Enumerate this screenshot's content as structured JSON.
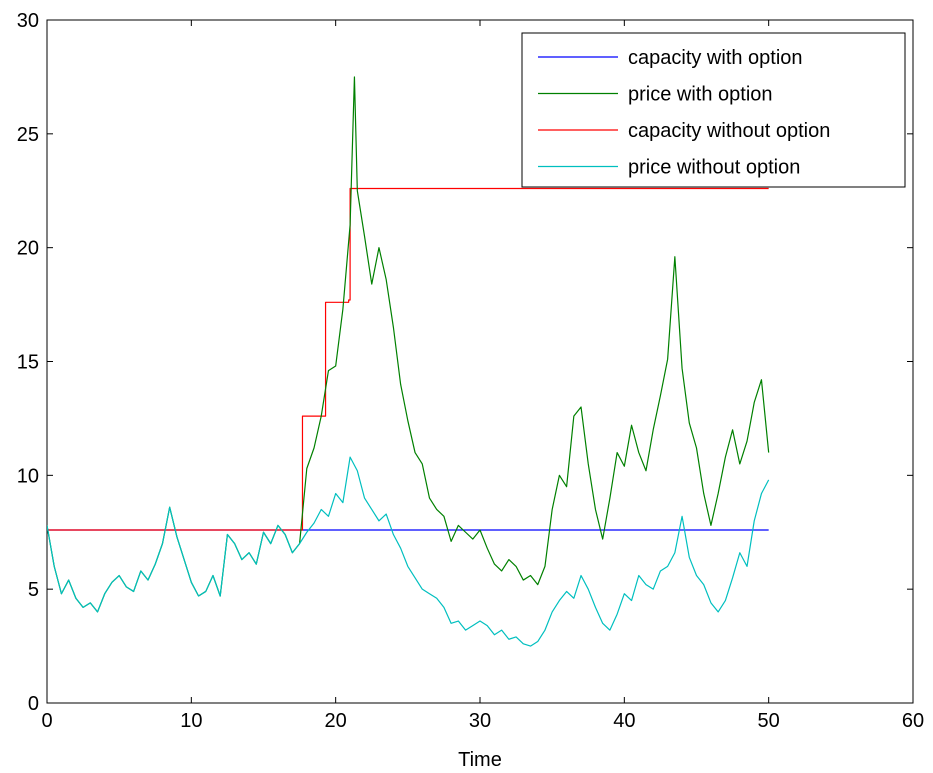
{
  "chart_data": {
    "type": "line",
    "title": "",
    "xlabel": "Time",
    "ylabel": "",
    "xlim": [
      0,
      60
    ],
    "ylim": [
      0,
      30
    ],
    "xticks": [
      "0",
      "10",
      "20",
      "30",
      "40",
      "50",
      "60"
    ],
    "yticks": [
      "0",
      "5",
      "10",
      "15",
      "20",
      "25",
      "30"
    ],
    "grid": false,
    "legend_position": "top-right",
    "series": [
      {
        "name": "capacity with option",
        "color": "#0000ff",
        "x": [
          0,
          50
        ],
        "y": [
          7.6,
          7.6
        ],
        "step": true
      },
      {
        "name": "price with option",
        "color": "#008000",
        "x": [
          0,
          0.5,
          1.0,
          1.5,
          2.0,
          2.5,
          3.0,
          3.5,
          4.0,
          4.5,
          5.0,
          5.5,
          6.0,
          6.5,
          7.0,
          7.5,
          8.0,
          8.5,
          9.0,
          9.5,
          10.0,
          10.5,
          11.0,
          11.5,
          12.0,
          12.5,
          13.0,
          13.5,
          14.0,
          14.5,
          15.0,
          15.5,
          16.0,
          16.5,
          17.0,
          17.5,
          18.0,
          18.5,
          19.0,
          19.5,
          20.0,
          20.5,
          21.0,
          21.3,
          21.5,
          22.0,
          22.5,
          23.0,
          23.5,
          24.0,
          24.5,
          25.0,
          25.5,
          26.0,
          26.5,
          27.0,
          27.5,
          28.0,
          28.5,
          29.0,
          29.5,
          30.0,
          30.5,
          31.0,
          31.5,
          32.0,
          32.5,
          33.0,
          33.5,
          34.0,
          34.5,
          35.0,
          35.5,
          36.0,
          36.5,
          37.0,
          37.5,
          38.0,
          38.5,
          39.0,
          39.5,
          40.0,
          40.5,
          41.0,
          41.5,
          42.0,
          42.5,
          43.0,
          43.5,
          44.0,
          44.5,
          45.0,
          45.5,
          46.0,
          46.5,
          47.0,
          47.5,
          48.0,
          48.5,
          49.0,
          49.5,
          50.0
        ],
        "y": [
          7.8,
          6.0,
          4.8,
          5.4,
          4.6,
          4.2,
          4.4,
          4.0,
          4.8,
          5.3,
          5.6,
          5.1,
          4.9,
          5.8,
          5.4,
          6.1,
          7.0,
          8.6,
          7.3,
          6.3,
          5.3,
          4.7,
          4.9,
          5.6,
          4.7,
          7.4,
          7.0,
          6.3,
          6.6,
          6.1,
          7.5,
          7.0,
          7.8,
          7.4,
          6.6,
          7.0,
          10.3,
          11.2,
          12.6,
          14.6,
          14.8,
          17.3,
          21.0,
          27.5,
          22.5,
          20.5,
          18.4,
          20.0,
          18.6,
          16.5,
          14.0,
          12.4,
          11.0,
          10.5,
          9.0,
          8.5,
          8.2,
          7.1,
          7.8,
          7.5,
          7.2,
          7.6,
          6.8,
          6.1,
          5.8,
          6.3,
          6.0,
          5.4,
          5.6,
          5.2,
          6.0,
          8.5,
          10.0,
          9.5,
          12.6,
          13.0,
          10.5,
          8.5,
          7.2,
          9.0,
          11.0,
          10.4,
          12.2,
          11.0,
          10.2,
          12.0,
          13.5,
          15.1,
          19.6,
          14.7,
          12.3,
          11.2,
          9.2,
          7.8,
          9.2,
          10.8,
          12.0,
          10.5,
          11.5,
          13.2,
          14.2,
          11.0
        ]
      },
      {
        "name": "capacity without option",
        "color": "#ff0000",
        "x": [
          0,
          17.7,
          17.7,
          19.3,
          19.3,
          20.9,
          20.9,
          21.0,
          21.0,
          50
        ],
        "y": [
          7.6,
          7.6,
          12.6,
          12.6,
          17.6,
          17.6,
          17.7,
          17.7,
          22.6,
          22.6
        ],
        "step": true
      },
      {
        "name": "price without option",
        "color": "#00bfbf",
        "x": [
          0,
          0.5,
          1.0,
          1.5,
          2.0,
          2.5,
          3.0,
          3.5,
          4.0,
          4.5,
          5.0,
          5.5,
          6.0,
          6.5,
          7.0,
          7.5,
          8.0,
          8.5,
          9.0,
          9.5,
          10.0,
          10.5,
          11.0,
          11.5,
          12.0,
          12.5,
          13.0,
          13.5,
          14.0,
          14.5,
          15.0,
          15.5,
          16.0,
          16.5,
          17.0,
          17.5,
          18.0,
          18.5,
          19.0,
          19.5,
          20.0,
          20.5,
          21.0,
          21.5,
          22.0,
          22.5,
          23.0,
          23.5,
          24.0,
          24.5,
          25.0,
          25.5,
          26.0,
          26.5,
          27.0,
          27.5,
          28.0,
          28.5,
          29.0,
          29.5,
          30.0,
          30.5,
          31.0,
          31.5,
          32.0,
          32.5,
          33.0,
          33.5,
          34.0,
          34.5,
          35.0,
          35.5,
          36.0,
          36.5,
          37.0,
          37.5,
          38.0,
          38.5,
          39.0,
          39.5,
          40.0,
          40.5,
          41.0,
          41.5,
          42.0,
          42.5,
          43.0,
          43.5,
          44.0,
          44.5,
          45.0,
          45.5,
          46.0,
          46.5,
          47.0,
          47.5,
          48.0,
          48.5,
          49.0,
          49.5,
          50.0
        ],
        "y": [
          7.8,
          6.0,
          4.8,
          5.4,
          4.6,
          4.2,
          4.4,
          4.0,
          4.8,
          5.3,
          5.6,
          5.1,
          4.9,
          5.8,
          5.4,
          6.1,
          7.0,
          8.6,
          7.3,
          6.3,
          5.3,
          4.7,
          4.9,
          5.6,
          4.7,
          7.4,
          7.0,
          6.3,
          6.6,
          6.1,
          7.5,
          7.0,
          7.8,
          7.4,
          6.6,
          7.0,
          7.5,
          7.9,
          8.5,
          8.2,
          9.2,
          8.8,
          10.8,
          10.2,
          9.0,
          8.5,
          8.0,
          8.3,
          7.4,
          6.8,
          6.0,
          5.5,
          5.0,
          4.8,
          4.6,
          4.2,
          3.5,
          3.6,
          3.2,
          3.4,
          3.6,
          3.4,
          3.0,
          3.2,
          2.8,
          2.9,
          2.6,
          2.5,
          2.7,
          3.2,
          4.0,
          4.5,
          4.9,
          4.6,
          5.6,
          5.0,
          4.2,
          3.5,
          3.2,
          3.9,
          4.8,
          4.5,
          5.6,
          5.2,
          5.0,
          5.8,
          6.0,
          6.6,
          8.2,
          6.4,
          5.6,
          5.2,
          4.4,
          4.0,
          4.5,
          5.5,
          6.6,
          6.0,
          8.0,
          9.2,
          9.8
        ]
      }
    ]
  }
}
